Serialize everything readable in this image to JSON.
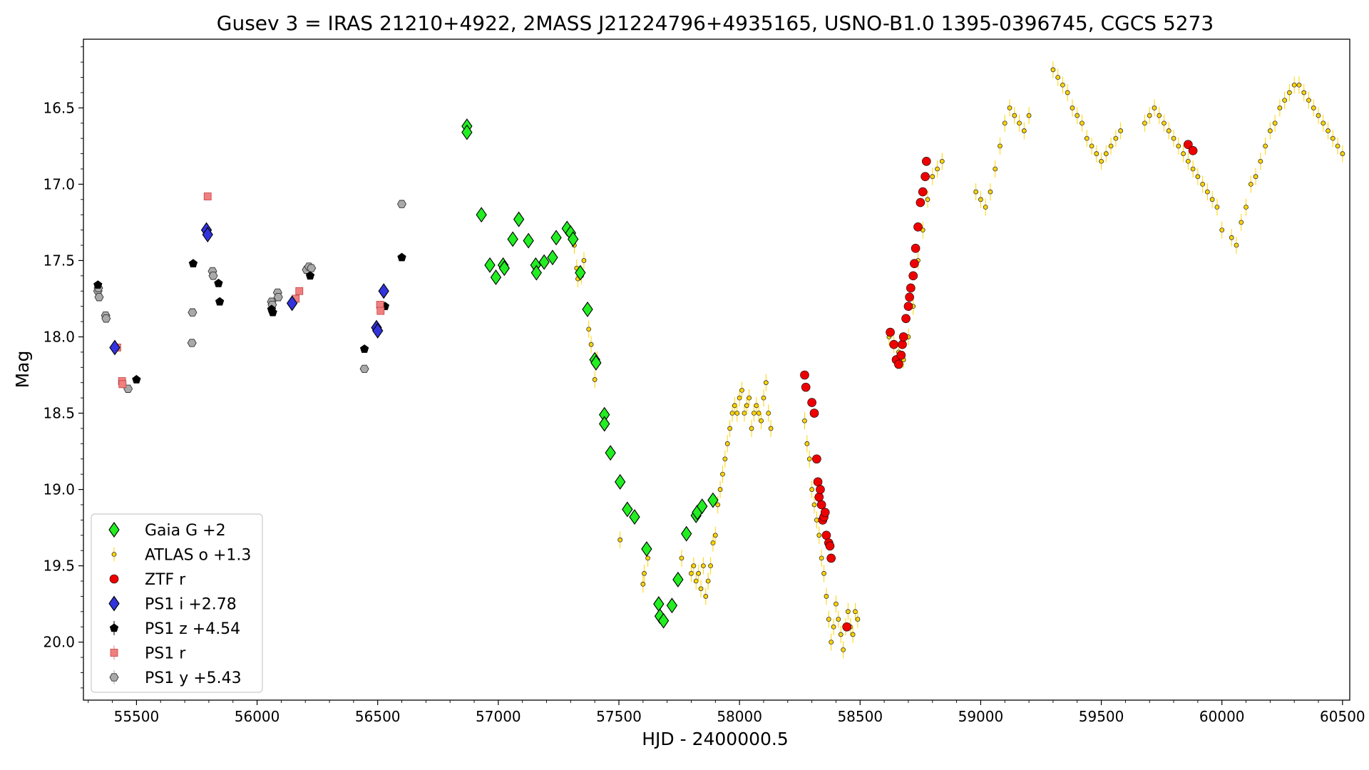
{
  "chart_data": {
    "type": "scatter",
    "title": "Gusev 3 = IRAS 21210+4922, 2MASS J21224796+4935165, USNO-B1.0 1395-0396745, CGCS 5273",
    "xlabel": "HJD - 2400000.5",
    "ylabel": "Mag",
    "xlim": [
      55280,
      60530
    ],
    "ylim": [
      20.38,
      16.05
    ],
    "y_inverted": true,
    "grid": false,
    "legend_position": "lower-left",
    "x_ticks": [
      55500,
      56000,
      56500,
      57000,
      57500,
      58000,
      58500,
      59000,
      59500,
      60000,
      60500
    ],
    "x_tick_labels": [
      "55500",
      "56000",
      "56500",
      "57000",
      "57500",
      "58000",
      "58500",
      "59000",
      "59500",
      "60000",
      "60500"
    ],
    "y_ticks": [
      16.5,
      17.0,
      17.5,
      18.0,
      18.5,
      19.0,
      19.5,
      20.0
    ],
    "y_tick_labels": [
      "16.5",
      "17.0",
      "17.5",
      "18.0",
      "18.5",
      "19.0",
      "19.5",
      "20.0"
    ],
    "series": [
      {
        "name": "Gaia G +2",
        "marker": "diamond",
        "color": "#22ee22",
        "x": [
          56870,
          56870,
          56930,
          56965,
          56990,
          57020,
          57025,
          57060,
          57085,
          57125,
          57155,
          57158,
          57190,
          57225,
          57240,
          57285,
          57300,
          57310,
          57340,
          57370,
          57400,
          57405,
          57440,
          57440,
          57465,
          57505,
          57535,
          57565,
          57615,
          57665,
          57670,
          57685,
          57720,
          57745,
          57780,
          57820,
          57825,
          57845,
          57890
        ],
        "y": [
          16.62,
          16.66,
          17.2,
          17.53,
          17.61,
          17.53,
          17.55,
          17.36,
          17.23,
          17.37,
          17.53,
          17.58,
          17.51,
          17.48,
          17.35,
          17.29,
          17.32,
          17.36,
          17.58,
          17.82,
          18.15,
          18.17,
          18.51,
          18.57,
          18.76,
          18.95,
          19.13,
          19.18,
          19.39,
          19.75,
          19.83,
          19.86,
          19.76,
          19.59,
          19.29,
          19.17,
          19.15,
          19.11,
          19.07
        ]
      },
      {
        "name": "ATLAS o +1.3",
        "marker": "circle",
        "color": "#ffd400",
        "errorbar_color": "#ffd400",
        "x": [
          57315,
          57325,
          57330,
          57345,
          57355,
          57375,
          57385,
          57400,
          57410,
          57505,
          57600,
          57605,
          57620,
          57760,
          57800,
          57810,
          57820,
          57830,
          57840,
          57850,
          57860,
          57870,
          57880,
          57890,
          57900,
          57910,
          57920,
          57930,
          57940,
          57950,
          57960,
          57970,
          57980,
          57990,
          58000,
          58010,
          58020,
          58030,
          58040,
          58050,
          58060,
          58070,
          58080,
          58090,
          58100,
          58110,
          58120,
          58130,
          58270,
          58280,
          58290,
          58300,
          58310,
          58320,
          58330,
          58340,
          58350,
          58360,
          58370,
          58380,
          58390,
          58400,
          58410,
          58420,
          58430,
          58440,
          58450,
          58460,
          58470,
          58480,
          58490,
          58620,
          58640,
          58660,
          58680,
          58700,
          58720,
          58740,
          58760,
          58780,
          58800,
          58820,
          58840,
          58980,
          59000,
          59020,
          59040,
          59060,
          59080,
          59100,
          59120,
          59140,
          59160,
          59180,
          59200,
          59300,
          59320,
          59340,
          59360,
          59380,
          59400,
          59420,
          59440,
          59460,
          59480,
          59500,
          59520,
          59540,
          59560,
          59580,
          59680,
          59700,
          59720,
          59740,
          59760,
          59780,
          59800,
          59820,
          59840,
          59860,
          59880,
          59900,
          59920,
          59940,
          59960,
          59980,
          60000,
          60040,
          60060,
          60080,
          60100,
          60120,
          60140,
          60160,
          60180,
          60200,
          60220,
          60240,
          60260,
          60280,
          60300,
          60320,
          60340,
          60360,
          60380,
          60400,
          60420,
          60440,
          60460,
          60480,
          60500
        ],
        "y": [
          17.4,
          17.55,
          17.62,
          17.6,
          17.5,
          17.95,
          18.05,
          18.28,
          18.15,
          19.33,
          19.62,
          19.55,
          19.45,
          19.45,
          19.55,
          19.5,
          19.6,
          19.55,
          19.65,
          19.5,
          19.7,
          19.6,
          19.5,
          19.35,
          19.3,
          19.1,
          19.0,
          18.9,
          18.8,
          18.7,
          18.6,
          18.5,
          18.45,
          18.5,
          18.4,
          18.35,
          18.5,
          18.45,
          18.4,
          18.6,
          18.5,
          18.45,
          18.5,
          18.55,
          18.4,
          18.3,
          18.5,
          18.6,
          18.55,
          18.7,
          18.8,
          19.0,
          19.1,
          19.2,
          19.3,
          19.45,
          19.55,
          19.7,
          19.85,
          20.0,
          19.9,
          19.75,
          19.85,
          19.95,
          20.05,
          19.9,
          19.8,
          19.9,
          19.95,
          19.8,
          19.85,
          18.0,
          18.05,
          18.1,
          18.15,
          18.0,
          17.8,
          17.5,
          17.3,
          17.1,
          16.95,
          16.9,
          16.85,
          17.05,
          17.1,
          17.15,
          17.05,
          16.9,
          16.75,
          16.6,
          16.5,
          16.55,
          16.6,
          16.65,
          16.55,
          16.25,
          16.3,
          16.35,
          16.4,
          16.5,
          16.55,
          16.6,
          16.7,
          16.75,
          16.8,
          16.85,
          16.8,
          16.75,
          16.7,
          16.65,
          16.6,
          16.55,
          16.5,
          16.55,
          16.6,
          16.65,
          16.7,
          16.75,
          16.8,
          16.85,
          16.9,
          16.95,
          17.0,
          17.05,
          17.1,
          17.15,
          17.3,
          17.35,
          17.4,
          17.25,
          17.15,
          17.0,
          16.95,
          16.85,
          16.75,
          16.65,
          16.6,
          16.5,
          16.45,
          16.4,
          16.35,
          16.35,
          16.4,
          16.45,
          16.5,
          16.55,
          16.6,
          16.65,
          16.7,
          16.75,
          16.8
        ]
      },
      {
        "name": "ZTF r",
        "marker": "circle",
        "color": "#ee0000",
        "x": [
          58270,
          58275,
          58300,
          58310,
          58320,
          58325,
          58330,
          58335,
          58340,
          58345,
          58350,
          58355,
          58360,
          58370,
          58375,
          58380,
          58445,
          58625,
          58640,
          58650,
          58660,
          58670,
          58675,
          58680,
          58690,
          58700,
          58705,
          58710,
          58720,
          58725,
          58730,
          58740,
          58750,
          58760,
          58770,
          58775,
          59860,
          59880
        ],
        "y": [
          18.25,
          18.33,
          18.43,
          18.5,
          18.8,
          18.95,
          19.05,
          19.0,
          19.1,
          19.2,
          19.18,
          19.15,
          19.3,
          19.35,
          19.37,
          19.45,
          19.9,
          17.97,
          18.05,
          18.15,
          18.18,
          18.12,
          18.05,
          18.0,
          17.88,
          17.8,
          17.74,
          17.68,
          17.6,
          17.52,
          17.42,
          17.28,
          17.12,
          17.05,
          16.95,
          16.85,
          16.74,
          16.78
        ]
      },
      {
        "name": "PS1 i +2.78",
        "marker": "diamond",
        "color": "#3333dd",
        "x": [
          55410,
          55790,
          55795,
          56145,
          56495,
          56500,
          56525
        ],
        "y": [
          18.07,
          17.3,
          17.33,
          17.78,
          17.94,
          17.96,
          17.7
        ]
      },
      {
        "name": "PS1 z +4.54",
        "marker": "pentagon",
        "color": "#000000",
        "x": [
          55340,
          55500,
          55735,
          55840,
          55845,
          56060,
          56065,
          56220,
          56445,
          56530,
          56600
        ],
        "y": [
          17.66,
          18.28,
          17.52,
          17.65,
          17.77,
          17.82,
          17.84,
          17.6,
          18.08,
          17.8,
          17.48
        ]
      },
      {
        "name": "PS1 r",
        "marker": "square",
        "color": "#f08080",
        "x": [
          55420,
          55440,
          55442,
          55795,
          56160,
          56175,
          56510,
          56512
        ],
        "y": [
          18.07,
          18.29,
          18.31,
          17.08,
          17.75,
          17.7,
          17.79,
          17.83
        ]
      },
      {
        "name": "PS1 y +5.43",
        "marker": "hexagon",
        "color": "#a9a9a9",
        "x": [
          55340,
          55342,
          55345,
          55372,
          55374,
          55465,
          55730,
          55732,
          55815,
          55818,
          56060,
          56063,
          56085,
          56088,
          56205,
          56215,
          56225,
          56445,
          56600
        ],
        "y": [
          17.7,
          17.68,
          17.74,
          17.86,
          17.88,
          18.34,
          18.04,
          17.84,
          17.57,
          17.6,
          17.77,
          17.79,
          17.71,
          17.74,
          17.56,
          17.54,
          17.55,
          18.21,
          17.13
        ]
      }
    ]
  }
}
